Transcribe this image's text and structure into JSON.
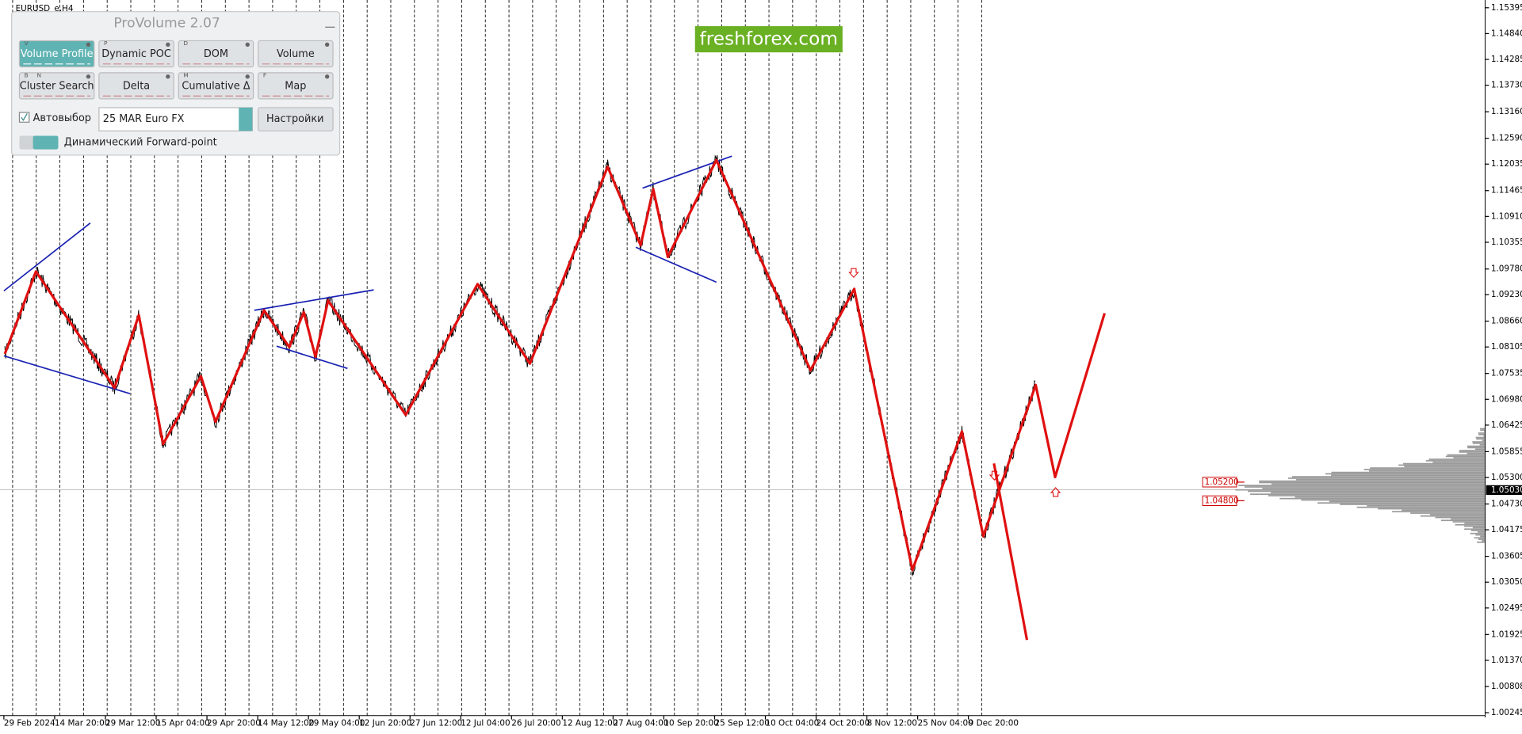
{
  "chart_window": {
    "symbol": "EURUSD_e,H4",
    "watermark": "freshforex.com",
    "price_axis": [
      "1.15395",
      "1.14840",
      "1.14285",
      "1.13730",
      "1.13160",
      "1.12590",
      "1.12035",
      "1.11465",
      "1.10910",
      "1.10355",
      "1.09780",
      "1.09230",
      "1.08660",
      "1.08105",
      "1.07535",
      "1.06980",
      "1.06425",
      "1.05855",
      "1.05300",
      "1.04730",
      "1.04175",
      "1.03605",
      "1.03050",
      "1.02495",
      "1.01925",
      "1.01370",
      "1.00808",
      "1.00245"
    ],
    "time_axis": [
      "29 Feb 2024",
      "14 Mar 20:00",
      "29 Mar 12:00",
      "15 Apr 04:00",
      "29 Apr 20:00",
      "14 May 12:00",
      "29 May 04:00",
      "12 Jun 20:00",
      "27 Jun 12:00",
      "12 Jul 04:00",
      "26 Jul 20:00",
      "12 Aug 12:00",
      "27 Aug 04:00",
      "10 Sep 20:00",
      "25 Sep 12:00",
      "10 Oct 04:00",
      "24 Oct 20:00",
      "8 Nov 12:00",
      "25 Nov 04:00",
      "9 Dec 20:00"
    ],
    "current_price": "1.05030",
    "levels": [
      "1.05200",
      "1.04800"
    ]
  },
  "panel": {
    "title": "ProVolume 2.07",
    "buttons": [
      {
        "label": "Volume Profile",
        "keys": [
          "V"
        ]
      },
      {
        "label": "Dynamic POC",
        "keys": [
          "P"
        ]
      },
      {
        "label": "DOM",
        "keys": [
          "D"
        ]
      },
      {
        "label": "Volume",
        "keys": []
      },
      {
        "label": "Cluster Search",
        "keys": [
          "B",
          "N"
        ]
      },
      {
        "label": "Delta",
        "keys": []
      },
      {
        "label": "Cumulative Δ",
        "keys": [
          "M"
        ]
      },
      {
        "label": "Map",
        "keys": [
          "F"
        ]
      }
    ],
    "autoselect": "Автовыбор",
    "instrument": "25 MAR Euro FX",
    "settings": "Настройки",
    "forward_point": "Динамический Forward-point"
  }
}
